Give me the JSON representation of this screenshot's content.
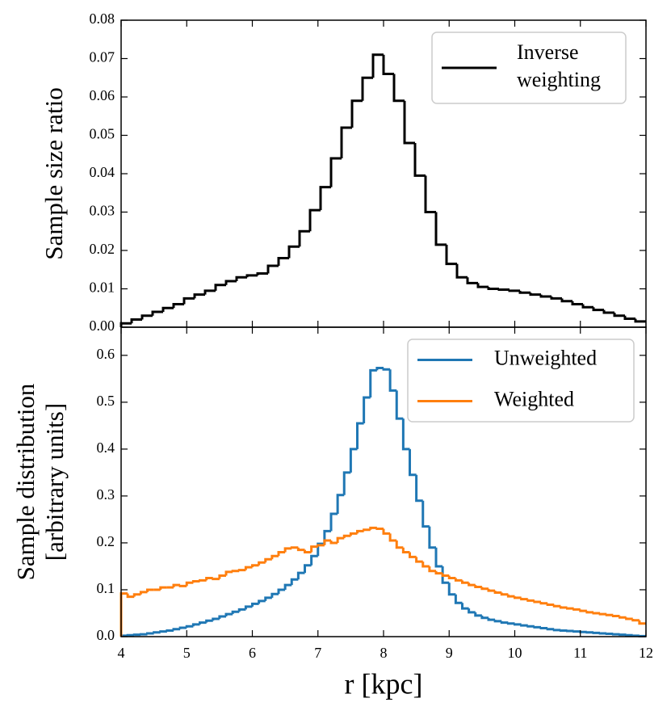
{
  "chart_data": [
    {
      "type": "histogram",
      "ylabel": "Sample size ratio",
      "bins": [
        4,
        4.16,
        4.32,
        4.48,
        4.64,
        4.8,
        4.96,
        5.12,
        5.28,
        5.44,
        5.6,
        5.76,
        5.92,
        6.08,
        6.24,
        6.4,
        6.56,
        6.72,
        6.88,
        7.04,
        7.2,
        7.36,
        7.52,
        7.68,
        7.84,
        8,
        8.16,
        8.32,
        8.48,
        8.64,
        8.8,
        8.96,
        9.12,
        9.28,
        9.44,
        9.6,
        9.76,
        9.92,
        10.08,
        10.24,
        10.4,
        10.56,
        10.72,
        10.88,
        11.04,
        11.2,
        11.36,
        11.52,
        11.68,
        11.84,
        12
      ],
      "series": [
        {
          "name": "Inverse weighting",
          "color": "#000000",
          "values": [
            0.001,
            0.002,
            0.003,
            0.004,
            0.005,
            0.006,
            0.0075,
            0.0085,
            0.0095,
            0.011,
            0.012,
            0.013,
            0.0135,
            0.014,
            0.016,
            0.018,
            0.021,
            0.025,
            0.0305,
            0.0365,
            0.044,
            0.052,
            0.059,
            0.065,
            0.071,
            0.066,
            0.059,
            0.048,
            0.0395,
            0.03,
            0.0215,
            0.0165,
            0.013,
            0.0115,
            0.0105,
            0.01,
            0.0098,
            0.0095,
            0.009,
            0.0085,
            0.008,
            0.0075,
            0.0068,
            0.006,
            0.0052,
            0.0045,
            0.0038,
            0.003,
            0.0022,
            0.0015
          ]
        }
      ],
      "xlim": [
        4,
        12
      ],
      "xticks": [
        4,
        5,
        6,
        7,
        8,
        9,
        10,
        11,
        12
      ],
      "ylim": [
        0,
        0.08
      ],
      "yticks": [
        {
          "value": 0,
          "label": "0.00"
        },
        {
          "value": 0.01,
          "label": "0.01"
        },
        {
          "value": 0.02,
          "label": "0.02"
        },
        {
          "value": 0.03,
          "label": "0.03"
        },
        {
          "value": 0.04,
          "label": "0.04"
        },
        {
          "value": 0.05,
          "label": "0.05"
        },
        {
          "value": 0.06,
          "label": "0.06"
        },
        {
          "value": 0.07,
          "label": "0.07"
        },
        {
          "value": 0.08,
          "label": "0.08"
        }
      ],
      "legend": "upper right"
    },
    {
      "type": "histogram",
      "ylabel": [
        "Sample distribution",
        "[arbitrary units]"
      ],
      "xlabel": "r [kpc]",
      "bins": [
        4,
        4.1,
        4.2,
        4.3,
        4.4,
        4.5,
        4.6,
        4.7,
        4.8,
        4.9,
        5,
        5.1,
        5.2,
        5.3,
        5.4,
        5.5,
        5.6,
        5.7,
        5.8,
        5.9,
        6,
        6.1,
        6.2,
        6.3,
        6.4,
        6.5,
        6.6,
        6.7,
        6.8,
        6.9,
        7,
        7.1,
        7.2,
        7.3,
        7.4,
        7.5,
        7.6,
        7.7,
        7.8,
        7.9,
        8,
        8.1,
        8.2,
        8.3,
        8.4,
        8.5,
        8.6,
        8.7,
        8.8,
        8.9,
        9,
        9.1,
        9.2,
        9.3,
        9.4,
        9.5,
        9.6,
        9.7,
        9.8,
        9.9,
        10,
        10.1,
        10.2,
        10.3,
        10.4,
        10.5,
        10.6,
        10.7,
        10.8,
        10.9,
        11,
        11.1,
        11.2,
        11.3,
        11.4,
        11.5,
        11.6,
        11.7,
        11.8,
        11.9,
        12
      ],
      "series": [
        {
          "name": "Unweighted",
          "color": "#1f77b4",
          "values": [
            0.002,
            0.003,
            0.004,
            0.005,
            0.007,
            0.009,
            0.011,
            0.013,
            0.016,
            0.019,
            0.022,
            0.026,
            0.03,
            0.034,
            0.038,
            0.043,
            0.048,
            0.053,
            0.058,
            0.064,
            0.07,
            0.076,
            0.083,
            0.091,
            0.1,
            0.11,
            0.122,
            0.136,
            0.152,
            0.172,
            0.198,
            0.225,
            0.262,
            0.302,
            0.35,
            0.4,
            0.455,
            0.51,
            0.568,
            0.573,
            0.57,
            0.525,
            0.465,
            0.4,
            0.345,
            0.29,
            0.235,
            0.19,
            0.15,
            0.115,
            0.09,
            0.072,
            0.06,
            0.052,
            0.045,
            0.04,
            0.036,
            0.033,
            0.03,
            0.028,
            0.026,
            0.024,
            0.022,
            0.02,
            0.018,
            0.016,
            0.014,
            0.013,
            0.012,
            0.011,
            0.01,
            0.009,
            0.008,
            0.007,
            0.006,
            0.005,
            0.004,
            0.003,
            0.002,
            0.001
          ]
        },
        {
          "name": "Weighted",
          "color": "#ff7f0e",
          "values": [
            0.092,
            0.085,
            0.09,
            0.095,
            0.1,
            0.1,
            0.105,
            0.105,
            0.11,
            0.108,
            0.115,
            0.118,
            0.12,
            0.125,
            0.123,
            0.13,
            0.138,
            0.14,
            0.142,
            0.148,
            0.152,
            0.158,
            0.165,
            0.172,
            0.18,
            0.188,
            0.19,
            0.185,
            0.18,
            0.192,
            0.195,
            0.205,
            0.2,
            0.21,
            0.215,
            0.22,
            0.225,
            0.228,
            0.232,
            0.23,
            0.22,
            0.205,
            0.19,
            0.18,
            0.17,
            0.16,
            0.15,
            0.14,
            0.135,
            0.13,
            0.125,
            0.12,
            0.115,
            0.11,
            0.106,
            0.102,
            0.098,
            0.094,
            0.09,
            0.086,
            0.083,
            0.08,
            0.077,
            0.074,
            0.071,
            0.068,
            0.065,
            0.062,
            0.06,
            0.058,
            0.055,
            0.052,
            0.05,
            0.048,
            0.046,
            0.044,
            0.041,
            0.038,
            0.035,
            0.028
          ]
        }
      ],
      "xlim": [
        4,
        12
      ],
      "xticks": [
        4,
        5,
        6,
        7,
        8,
        9,
        10,
        11,
        12
      ],
      "ylim": [
        0,
        0.66
      ],
      "yticks": [
        {
          "value": 0,
          "label": "0.0"
        },
        {
          "value": 0.1,
          "label": "0.1"
        },
        {
          "value": 0.2,
          "label": "0.2"
        },
        {
          "value": 0.3,
          "label": "0.3"
        },
        {
          "value": 0.4,
          "label": "0.4"
        },
        {
          "value": 0.5,
          "label": "0.5"
        },
        {
          "value": 0.6,
          "label": "0.6"
        }
      ],
      "legend": "upper right"
    }
  ]
}
